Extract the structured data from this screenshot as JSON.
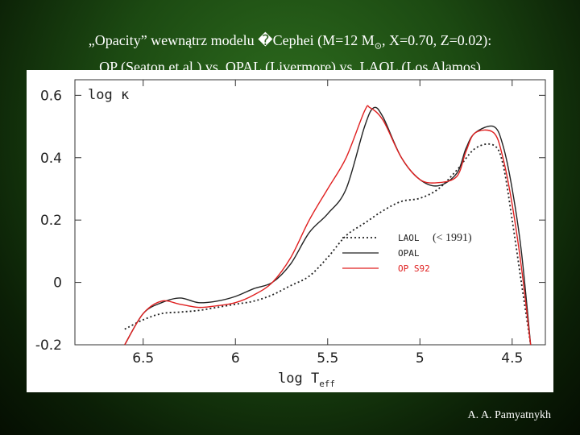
{
  "slide": {
    "title_line1_prefix": "„Opacity” wewnątrz modelu ",
    "title_line1_glyph": "�",
    "title_line1_mid": "Cephei (M=12 M",
    "title_line1_sub": "⊙",
    "title_line1_suffix": ", X=0.70, Z=0.02):",
    "title_line2": "OP (Seaton et al.) vs. OPAL (Livermore) vs. LAOL (Los Alamos)",
    "author": "A. A. Pamyatnykh"
  },
  "colors": {
    "background": "#1c4a12",
    "plot_bg": "#ffffff",
    "op": "#e02020",
    "opal": "#222222",
    "laol": "#222222"
  },
  "chart_data": {
    "type": "line",
    "title": "",
    "ylabel": "log κ",
    "xlabel": "log T",
    "xlabel_sub": "eff",
    "x_reversed": true,
    "xlim": [
      6.87,
      4.32
    ],
    "ylim": [
      -0.2,
      0.65
    ],
    "xticks": [
      6.5,
      6,
      5.5,
      5,
      4.5
    ],
    "xtick_labels": [
      "6.5",
      "6",
      "5.5",
      "5",
      "4.5"
    ],
    "yticks": [
      0.6,
      0.4,
      0.2,
      0,
      -0.2
    ],
    "ytick_labels": [
      "0.6",
      "0.4",
      "0.2",
      "0",
      "-0.2"
    ],
    "grid": false,
    "legend_position": "right-middle",
    "legend_note": "(< 1991)",
    "series": [
      {
        "name": "LAOL",
        "style": "dotted",
        "color": "#222222",
        "x": [
          6.6,
          6.5,
          6.4,
          6.3,
          6.2,
          6.1,
          6.0,
          5.9,
          5.8,
          5.7,
          5.6,
          5.5,
          5.4,
          5.3,
          5.2,
          5.1,
          5.0,
          4.9,
          4.8,
          4.7,
          4.6,
          4.55,
          4.5,
          4.45,
          4.4
        ],
        "y": [
          -0.15,
          -0.12,
          -0.1,
          -0.095,
          -0.09,
          -0.08,
          -0.07,
          -0.06,
          -0.04,
          -0.01,
          0.02,
          0.08,
          0.15,
          0.19,
          0.23,
          0.26,
          0.27,
          0.3,
          0.36,
          0.43,
          0.44,
          0.38,
          0.2,
          0.0,
          -0.2
        ]
      },
      {
        "name": "OPAL",
        "style": "solid",
        "color": "#222222",
        "x": [
          6.6,
          6.5,
          6.4,
          6.3,
          6.2,
          6.1,
          6.0,
          5.9,
          5.8,
          5.7,
          5.6,
          5.5,
          5.4,
          5.3,
          5.25,
          5.2,
          5.1,
          5.0,
          4.9,
          4.8,
          4.75,
          4.7,
          4.6,
          4.55,
          4.5,
          4.45,
          4.4
        ],
        "y": [
          -0.2,
          -0.1,
          -0.065,
          -0.05,
          -0.065,
          -0.06,
          -0.045,
          -0.02,
          0.0,
          0.06,
          0.16,
          0.22,
          0.3,
          0.5,
          0.56,
          0.53,
          0.4,
          0.33,
          0.31,
          0.35,
          0.43,
          0.48,
          0.5,
          0.44,
          0.3,
          0.1,
          -0.2
        ]
      },
      {
        "name": "OP S92",
        "style": "solid",
        "color": "#e02020",
        "x": [
          6.6,
          6.5,
          6.4,
          6.3,
          6.2,
          6.1,
          6.0,
          5.9,
          5.8,
          5.7,
          5.6,
          5.5,
          5.4,
          5.3,
          5.27,
          5.2,
          5.1,
          5.0,
          4.9,
          4.8,
          4.75,
          4.7,
          4.6,
          4.55,
          4.5,
          4.45,
          4.4
        ],
        "y": [
          -0.2,
          -0.1,
          -0.06,
          -0.07,
          -0.08,
          -0.075,
          -0.065,
          -0.04,
          0.0,
          0.08,
          0.2,
          0.3,
          0.4,
          0.55,
          0.56,
          0.52,
          0.4,
          0.33,
          0.32,
          0.34,
          0.42,
          0.48,
          0.48,
          0.4,
          0.25,
          0.05,
          -0.2
        ]
      }
    ]
  }
}
